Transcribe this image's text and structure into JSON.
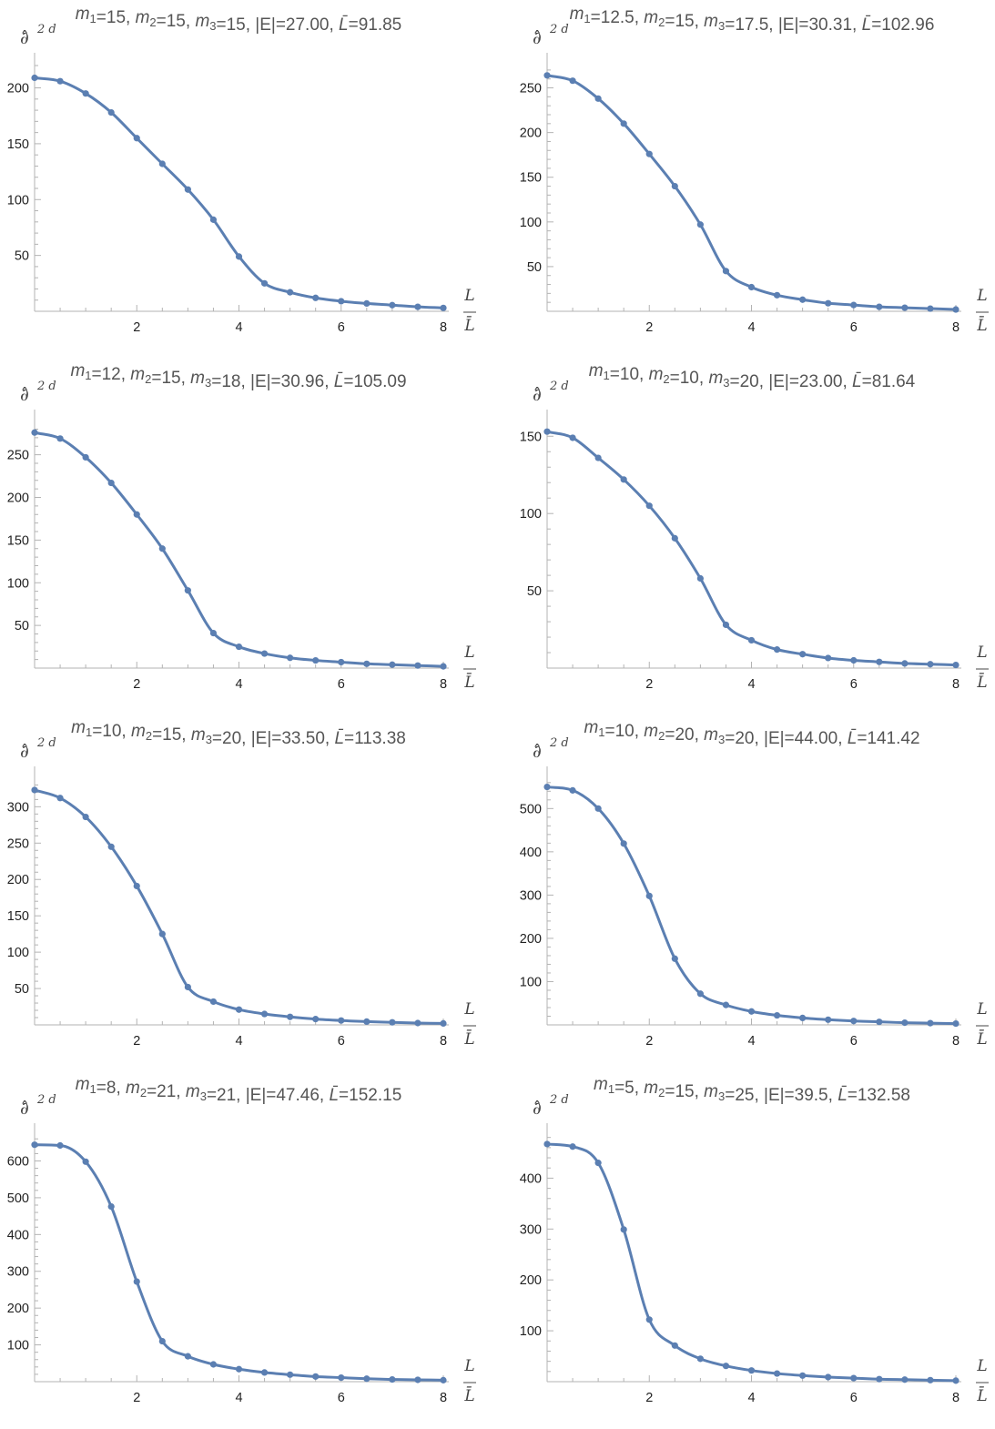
{
  "axis_labels": {
    "y_symbol": "∂̂",
    "y_power": "2 d",
    "x_numerator": "L",
    "x_denominator": "L̄"
  },
  "style": {
    "series_color": "#5b7fb2",
    "axis_color": "#b3b3b3",
    "title_color": "#555555"
  },
  "chart_data": [
    {
      "type": "line",
      "title": {
        "parts": [
          {
            "t": "m",
            "i": true
          },
          {
            "t": "1",
            "sub": true
          },
          {
            "t": "=15, "
          },
          {
            "t": "m",
            "i": true
          },
          {
            "t": "2",
            "sub": true
          },
          {
            "t": "=15, "
          },
          {
            "t": "m",
            "i": true
          },
          {
            "t": "3",
            "sub": true
          },
          {
            "t": "=15, |E|=27.00, "
          },
          {
            "t": "L̄",
            "i": true
          },
          {
            "t": "=91.85"
          }
        ]
      },
      "x": [
        0,
        0.5,
        1,
        1.5,
        2,
        2.5,
        3,
        3.5,
        4,
        4.5,
        5,
        5.5,
        6,
        6.5,
        7,
        7.5,
        8
      ],
      "y": [
        209,
        206,
        195,
        178,
        155,
        132,
        109,
        82,
        49,
        25,
        17,
        12,
        9,
        7,
        5.5,
        4,
        3
      ],
      "xlim": [
        0,
        8
      ],
      "ylim": [
        0,
        220
      ],
      "xticks": [
        2,
        4,
        6,
        8
      ],
      "yticks": [
        50,
        100,
        150,
        200
      ]
    },
    {
      "type": "line",
      "title": {
        "parts": [
          {
            "t": "m",
            "i": true
          },
          {
            "t": "1",
            "sub": true
          },
          {
            "t": "=12.5, "
          },
          {
            "t": "m",
            "i": true
          },
          {
            "t": "2",
            "sub": true
          },
          {
            "t": "=15, "
          },
          {
            "t": "m",
            "i": true
          },
          {
            "t": "3",
            "sub": true
          },
          {
            "t": "=17.5, |E|=30.31, "
          },
          {
            "t": "L̄",
            "i": true
          },
          {
            "t": "=102.96"
          }
        ]
      },
      "x": [
        0,
        0.5,
        1,
        1.5,
        2,
        2.5,
        3,
        3.5,
        4,
        4.5,
        5,
        5.5,
        6,
        6.5,
        7,
        7.5,
        8
      ],
      "y": [
        264,
        258,
        238,
        210,
        176,
        140,
        97,
        45,
        27,
        18,
        13,
        9,
        7,
        5,
        4,
        3,
        2
      ],
      "xlim": [
        0,
        8
      ],
      "ylim": [
        0,
        275
      ],
      "xticks": [
        2,
        4,
        6,
        8
      ],
      "yticks": [
        50,
        100,
        150,
        200,
        250
      ]
    },
    {
      "type": "line",
      "title": {
        "parts": [
          {
            "t": "m",
            "i": true
          },
          {
            "t": "1",
            "sub": true
          },
          {
            "t": "=12, "
          },
          {
            "t": "m",
            "i": true
          },
          {
            "t": "2",
            "sub": true
          },
          {
            "t": "=15, "
          },
          {
            "t": "m",
            "i": true
          },
          {
            "t": "3",
            "sub": true
          },
          {
            "t": "=18, |E|=30.96, "
          },
          {
            "t": "L̄",
            "i": true
          },
          {
            "t": "=105.09"
          }
        ]
      },
      "x": [
        0,
        0.5,
        1,
        1.5,
        2,
        2.5,
        3,
        3.5,
        4,
        4.5,
        5,
        5.5,
        6,
        6.5,
        7,
        7.5,
        8
      ],
      "y": [
        276,
        269,
        247,
        217,
        180,
        140,
        91,
        41,
        25,
        17,
        12,
        9,
        7,
        5,
        4,
        3,
        2
      ],
      "xlim": [
        0,
        8
      ],
      "ylim": [
        0,
        288
      ],
      "xticks": [
        2,
        4,
        6,
        8
      ],
      "yticks": [
        50,
        100,
        150,
        200,
        250
      ]
    },
    {
      "type": "line",
      "title": {
        "parts": [
          {
            "t": "m",
            "i": true
          },
          {
            "t": "1",
            "sub": true
          },
          {
            "t": "=10, "
          },
          {
            "t": "m",
            "i": true
          },
          {
            "t": "2",
            "sub": true
          },
          {
            "t": "=10, "
          },
          {
            "t": "m",
            "i": true
          },
          {
            "t": "3",
            "sub": true
          },
          {
            "t": "=20, |E|=23.00, "
          },
          {
            "t": "L̄",
            "i": true
          },
          {
            "t": "=81.64"
          }
        ]
      },
      "x": [
        0,
        0.5,
        1,
        1.5,
        2,
        2.5,
        3,
        3.5,
        4,
        4.5,
        5,
        5.5,
        6,
        6.5,
        7,
        7.5,
        8
      ],
      "y": [
        153,
        149,
        136,
        122,
        105,
        84,
        58,
        28,
        18,
        12,
        9,
        6.5,
        5,
        4,
        3,
        2.5,
        2
      ],
      "xlim": [
        0,
        8
      ],
      "ylim": [
        0,
        159
      ],
      "xticks": [
        2,
        4,
        6,
        8
      ],
      "yticks": [
        50,
        100,
        150
      ]
    },
    {
      "type": "line",
      "title": {
        "parts": [
          {
            "t": "m",
            "i": true
          },
          {
            "t": "1",
            "sub": true
          },
          {
            "t": "=10, "
          },
          {
            "t": "m",
            "i": true
          },
          {
            "t": "2",
            "sub": true
          },
          {
            "t": "=15, "
          },
          {
            "t": "m",
            "i": true
          },
          {
            "t": "3",
            "sub": true
          },
          {
            "t": "=20, |E|=33.50, "
          },
          {
            "t": "L̄",
            "i": true
          },
          {
            "t": "=113.38"
          }
        ]
      },
      "x": [
        0,
        0.5,
        1,
        1.5,
        2,
        2.5,
        3,
        3.5,
        4,
        4.5,
        5,
        5.5,
        6,
        6.5,
        7,
        7.5,
        8
      ],
      "y": [
        323,
        312,
        286,
        245,
        191,
        125,
        52,
        32,
        21,
        15,
        11,
        8,
        6,
        4.5,
        3.5,
        2.5,
        2
      ],
      "xlim": [
        0,
        8
      ],
      "ylim": [
        0,
        338
      ],
      "xticks": [
        2,
        4,
        6,
        8
      ],
      "yticks": [
        50,
        100,
        150,
        200,
        250,
        300
      ]
    },
    {
      "type": "line",
      "title": {
        "parts": [
          {
            "t": "m",
            "i": true
          },
          {
            "t": "1",
            "sub": true
          },
          {
            "t": "=10, "
          },
          {
            "t": "m",
            "i": true
          },
          {
            "t": "2",
            "sub": true
          },
          {
            "t": "=20, "
          },
          {
            "t": "m",
            "i": true
          },
          {
            "t": "3",
            "sub": true
          },
          {
            "t": "=20, |E|=44.00, "
          },
          {
            "t": "L̄",
            "i": true
          },
          {
            "t": "=141.42"
          }
        ]
      },
      "x": [
        0,
        0.5,
        1,
        1.5,
        2,
        2.5,
        3,
        3.5,
        4,
        4.5,
        5,
        5.5,
        6,
        6.5,
        7,
        7.5,
        8
      ],
      "y": [
        550,
        542,
        500,
        419,
        298,
        153,
        72,
        46,
        31,
        22,
        16,
        12,
        9,
        7,
        5,
        4,
        3
      ],
      "xlim": [
        0,
        8
      ],
      "ylim": [
        0,
        568
      ],
      "xticks": [
        2,
        4,
        6,
        8
      ],
      "yticks": [
        100,
        200,
        300,
        400,
        500
      ]
    },
    {
      "type": "line",
      "title": {
        "parts": [
          {
            "t": "m",
            "i": true
          },
          {
            "t": "1",
            "sub": true
          },
          {
            "t": "=8, "
          },
          {
            "t": "m",
            "i": true
          },
          {
            "t": "2",
            "sub": true
          },
          {
            "t": "=21, "
          },
          {
            "t": "m",
            "i": true
          },
          {
            "t": "3",
            "sub": true
          },
          {
            "t": "=21, |E|=47.46, "
          },
          {
            "t": "L̄",
            "i": true
          },
          {
            "t": "=152.15"
          }
        ]
      },
      "x": [
        0,
        0.5,
        1,
        1.5,
        2,
        2.5,
        3,
        3.5,
        4,
        4.5,
        5,
        5.5,
        6,
        6.5,
        7,
        7.5,
        8
      ],
      "y": [
        644,
        642,
        598,
        476,
        272,
        110,
        69,
        47,
        34,
        25,
        19,
        14,
        11,
        8,
        6,
        5,
        4
      ],
      "xlim": [
        0,
        8
      ],
      "ylim": [
        0,
        668
      ],
      "xticks": [
        2,
        4,
        6,
        8
      ],
      "yticks": [
        100,
        200,
        300,
        400,
        500,
        600
      ]
    },
    {
      "type": "line",
      "title": {
        "parts": [
          {
            "t": "m",
            "i": true
          },
          {
            "t": "1",
            "sub": true
          },
          {
            "t": "=5, "
          },
          {
            "t": "m",
            "i": true
          },
          {
            "t": "2",
            "sub": true
          },
          {
            "t": "=15, "
          },
          {
            "t": "m",
            "i": true
          },
          {
            "t": "3",
            "sub": true
          },
          {
            "t": "=25, |E|=39.5, "
          },
          {
            "t": "L̄",
            "i": true
          },
          {
            "t": "=132.58"
          }
        ]
      },
      "x": [
        0,
        0.5,
        1,
        1.5,
        2,
        2.5,
        3,
        3.5,
        4,
        4.5,
        5,
        5.5,
        6,
        6.5,
        7,
        7.5,
        8
      ],
      "y": [
        467,
        462,
        430,
        299,
        122,
        71,
        45,
        31,
        22,
        16,
        12,
        9,
        7,
        5,
        4,
        3,
        2
      ],
      "xlim": [
        0,
        8
      ],
      "ylim": [
        0,
        483
      ],
      "xticks": [
        2,
        4,
        6,
        8
      ],
      "yticks": [
        100,
        200,
        300,
        400
      ]
    }
  ]
}
